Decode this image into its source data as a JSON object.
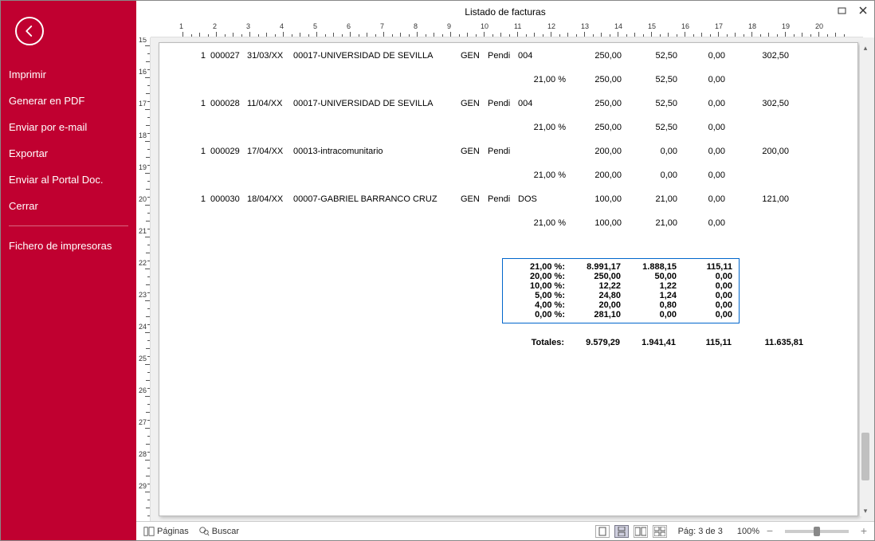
{
  "window": {
    "title": "Listado de facturas"
  },
  "sidebar": {
    "items": [
      {
        "label": "Imprimir"
      },
      {
        "label": "Generar en PDF"
      },
      {
        "label": "Enviar por e-mail"
      },
      {
        "label": "Exportar"
      },
      {
        "label": "Enviar al Portal Doc."
      },
      {
        "label": "Cerrar"
      }
    ],
    "secondary": [
      {
        "label": "Fichero de impresoras"
      }
    ]
  },
  "statusbar": {
    "pages_label": "Páginas",
    "search_label": "Buscar",
    "page_indicator": "Pág: 3 de 3",
    "zoom": "100%"
  },
  "colors": {
    "sidebar_bg": "#c00030",
    "summary_border": "#0066cc",
    "page_bg": "#ffffff",
    "canvas_bg": "#f0f0f0"
  },
  "ruler": {
    "h_start": 1,
    "h_end": 20,
    "v_start": 15,
    "v_end": 29
  },
  "report": {
    "rows": [
      {
        "ser": "1",
        "num": "000027",
        "date": "31/03/XX",
        "client": "00017-UNIVERSIDAD DE SEVILLA",
        "gen": "GEN",
        "stat": "Pendi",
        "extra": "004",
        "a1": "250,00",
        "a2": "52,50",
        "a3": "0,00",
        "a4": "302,50"
      },
      {
        "ser": "1",
        "num": "000028",
        "date": "11/04/XX",
        "client": "00017-UNIVERSIDAD DE SEVILLA",
        "gen": "GEN",
        "stat": "Pendi",
        "extra": "004",
        "a1": "250,00",
        "a2": "52,50",
        "a3": "0,00",
        "a4": "302,50"
      },
      {
        "ser": "1",
        "num": "000029",
        "date": "17/04/XX",
        "client": "00013-intracomunitario",
        "gen": "GEN",
        "stat": "Pendi",
        "extra": "",
        "a1": "200,00",
        "a2": "0,00",
        "a3": "0,00",
        "a4": "200,00"
      },
      {
        "ser": "1",
        "num": "000030",
        "date": "18/04/XX",
        "client": "00007-GABRIEL BARRANCO CRUZ",
        "gen": "GEN",
        "stat": "Pendi",
        "extra": "DOS",
        "a1": "100,00",
        "a2": "21,00",
        "a3": "0,00",
        "a4": "121,00"
      }
    ],
    "sub_pct": "21,00 %",
    "subs": [
      {
        "a1": "250,00",
        "a2": "52,50",
        "a3": "0,00"
      },
      {
        "a1": "250,00",
        "a2": "52,50",
        "a3": "0,00"
      },
      {
        "a1": "200,00",
        "a2": "0,00",
        "a3": "0,00"
      },
      {
        "a1": "100,00",
        "a2": "21,00",
        "a3": "0,00"
      }
    ],
    "summary": [
      {
        "pct": "21,00 %:",
        "v1": "8.991,17",
        "v2": "1.888,15",
        "v3": "115,11"
      },
      {
        "pct": "20,00 %:",
        "v1": "250,00",
        "v2": "50,00",
        "v3": "0,00"
      },
      {
        "pct": "10,00 %:",
        "v1": "12,22",
        "v2": "1,22",
        "v3": "0,00"
      },
      {
        "pct": "5,00 %:",
        "v1": "24,80",
        "v2": "1,24",
        "v3": "0,00"
      },
      {
        "pct": "4,00 %:",
        "v1": "20,00",
        "v2": "0,80",
        "v3": "0,00"
      },
      {
        "pct": "0,00 %:",
        "v1": "281,10",
        "v2": "0,00",
        "v3": "0,00"
      }
    ],
    "totals": {
      "label": "Totales:",
      "v1": "9.579,29",
      "v2": "1.941,41",
      "v3": "115,11",
      "v4": "11.635,81"
    }
  }
}
